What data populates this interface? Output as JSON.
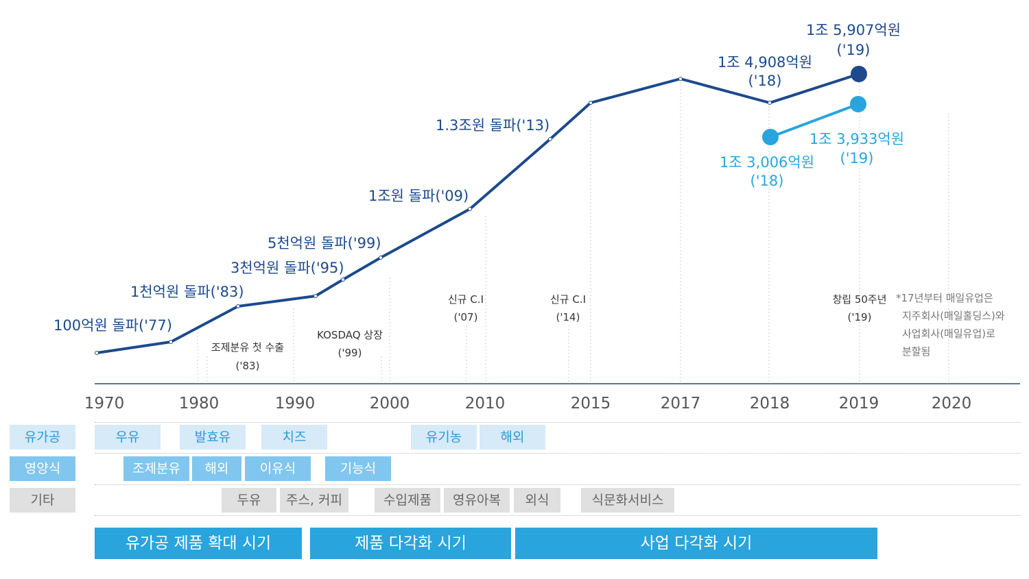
{
  "chart_data": {
    "type": "line",
    "title": "",
    "x_ticks": [
      "1970",
      "1980",
      "1990",
      "2000",
      "2010",
      "2015",
      "2017",
      "2018",
      "2019",
      "2020"
    ],
    "series": [
      {
        "color": "#1c4a8c",
        "points": [
          {
            "x": "1970",
            "label": ""
          },
          {
            "x": "1977",
            "label": "100억원 돌파('77)"
          },
          {
            "x": "1983",
            "label": "1천억원 돌파('83)"
          },
          {
            "x": "1992",
            "label": ""
          },
          {
            "x": "1995",
            "label": "3천억원 돌파('95)"
          },
          {
            "x": "1999",
            "label": "5천억원 돌파('99)"
          },
          {
            "x": "2009",
            "label": "1조원 돌파('09)"
          },
          {
            "x": "2013",
            "label": "1.3조원 돌파('13)"
          },
          {
            "x": "2015",
            "label": ""
          },
          {
            "x": "2017",
            "label": ""
          },
          {
            "x": "2018",
            "value_label": "1조 4,908억원",
            "year_label": "('18)"
          },
          {
            "x": "2019",
            "value_label": "1조 5,907억원",
            "year_label": "('19)"
          }
        ]
      },
      {
        "color": "#29a4dd",
        "points": [
          {
            "x": "2018",
            "value_label": "1조 3,006억원",
            "year_label": "('18)"
          },
          {
            "x": "2019",
            "value_label": "1조 3,933억원",
            "year_label": "('19)"
          }
        ]
      }
    ],
    "events": [
      {
        "lines": [
          "조제분유 첫 수출",
          "('83)"
        ]
      },
      {
        "lines": [
          "KOSDAQ 상장",
          "('99)"
        ]
      },
      {
        "lines": [
          "신규 C.I",
          "('07)"
        ]
      },
      {
        "lines": [
          "신규 C.I",
          "('14)"
        ]
      },
      {
        "lines": [
          "창립 50주년",
          "('19)"
        ]
      }
    ],
    "note": [
      "*17년부터 매일유업은",
      "지주회사(매일홀딩스)와",
      "사업회사(매일유업)로",
      "분할됨"
    ]
  },
  "rows": [
    {
      "label": "유가공",
      "items": [
        "우유",
        "발효유",
        "치즈",
        "유기농",
        "해외"
      ]
    },
    {
      "label": "영양식",
      "items": [
        "조제분유",
        "해외",
        "이유식",
        "기능식"
      ]
    },
    {
      "label": "기타",
      "items": [
        "두유",
        "주스, 커피",
        "수입제품",
        "영유아복",
        "외식",
        "식문화서비스"
      ]
    }
  ],
  "periods": [
    "유가공 제품 확대 시기",
    "제품 다각화 시기",
    "사업 다각화 시기"
  ],
  "colors": {
    "dark": "#1c4a8c",
    "light": "#29a4dd"
  }
}
